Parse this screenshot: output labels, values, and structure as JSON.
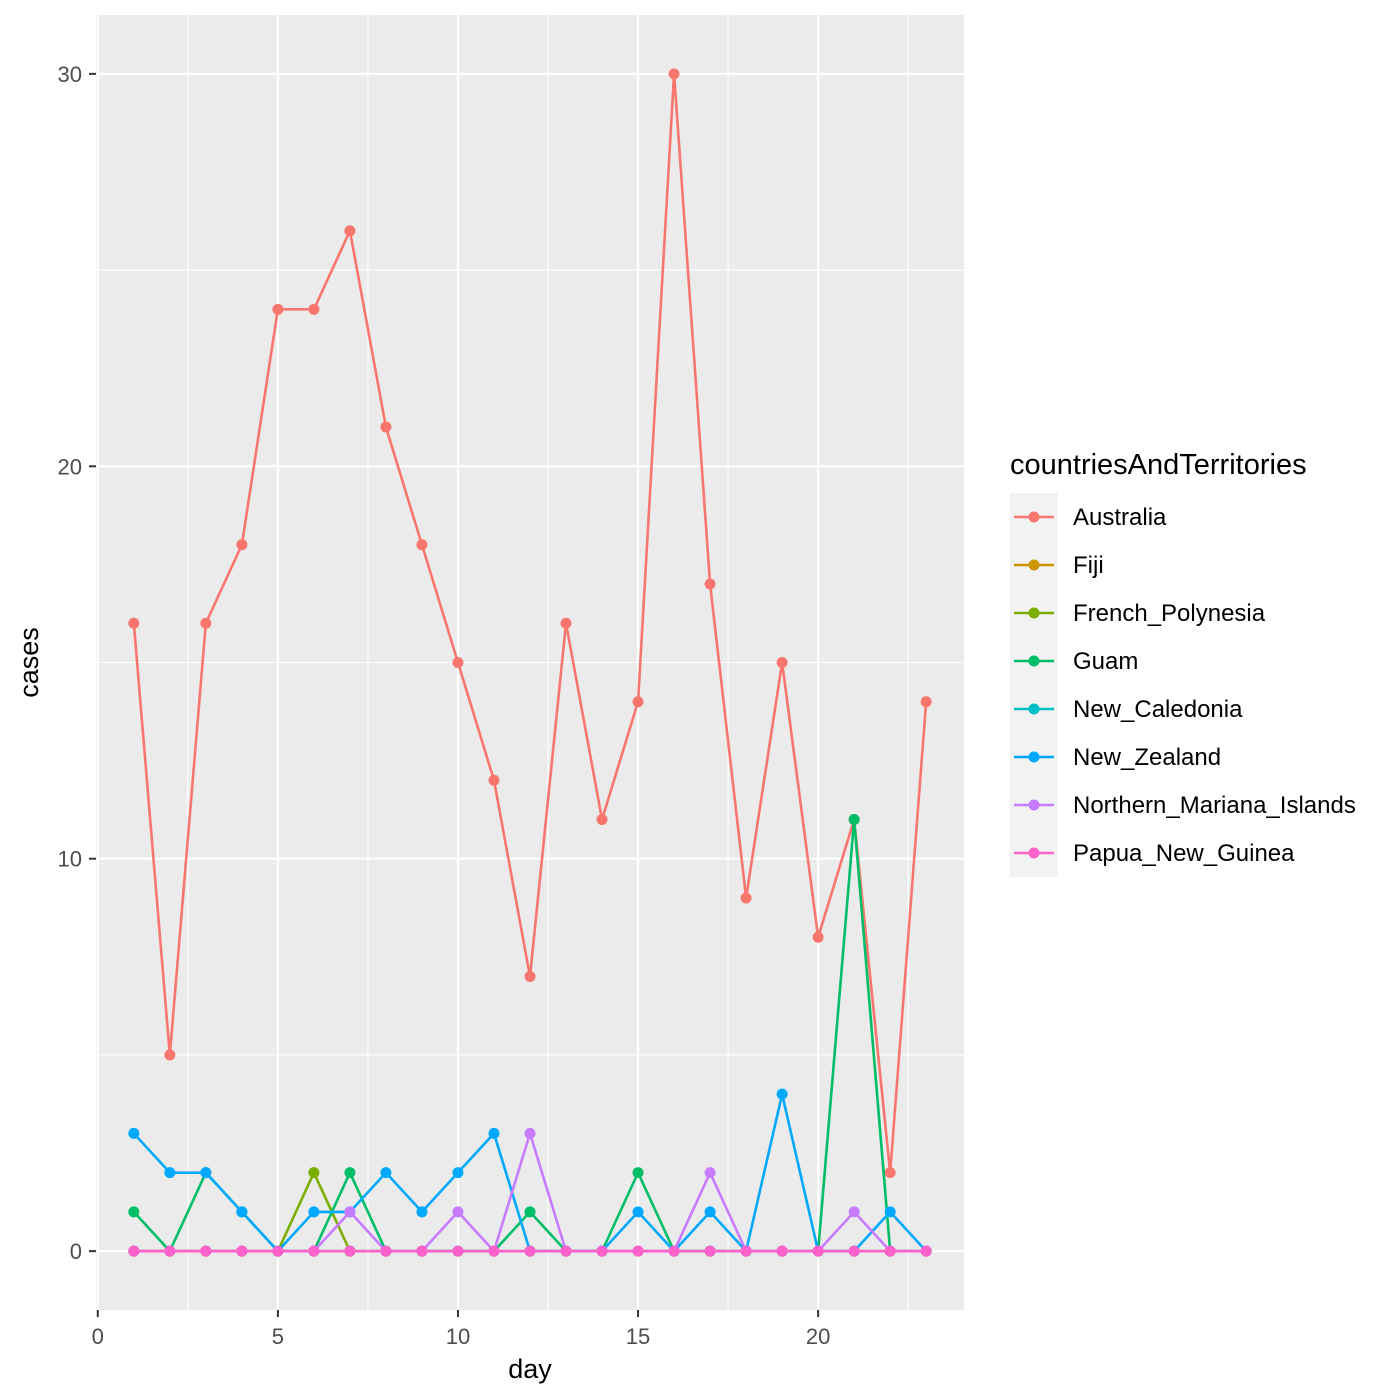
{
  "chart_data": {
    "type": "line",
    "title": "",
    "xlabel": "day",
    "ylabel": "cases",
    "xlim": [
      -0.05,
      24.05
    ],
    "ylim": [
      -1.5,
      31.5
    ],
    "x_ticks": [
      0,
      5,
      10,
      15,
      20
    ],
    "y_ticks": [
      0,
      10,
      20,
      30
    ],
    "grid": true,
    "legend": {
      "title": "countriesAndTerritories",
      "placement": "right"
    },
    "x": [
      1,
      2,
      3,
      4,
      5,
      6,
      7,
      8,
      9,
      10,
      11,
      12,
      13,
      14,
      15,
      16,
      17,
      18,
      19,
      20,
      21,
      22,
      23
    ],
    "series": [
      {
        "name": "Australia",
        "color": "#F8766D",
        "x": [
          1,
          2,
          3,
          4,
          5,
          6,
          7,
          8,
          9,
          10,
          11,
          12,
          13,
          14,
          15,
          16,
          17,
          18,
          19,
          20,
          21,
          22,
          23
        ],
        "values": [
          16,
          5,
          16,
          18,
          24,
          24,
          26,
          21,
          18,
          15,
          12,
          7,
          16,
          11,
          14,
          30,
          17,
          9,
          15,
          8,
          11,
          2,
          14
        ]
      },
      {
        "name": "Fiji",
        "color": "#CD9600",
        "x": [
          1,
          2,
          3,
          4,
          5,
          6,
          7,
          8,
          9,
          10,
          11,
          12,
          13,
          14,
          15,
          16,
          17,
          18,
          19,
          20,
          21,
          22,
          23
        ],
        "values": [
          0,
          0,
          0,
          0,
          0,
          0,
          0,
          0,
          0,
          0,
          0,
          0,
          0,
          0,
          0,
          0,
          0,
          0,
          0,
          0,
          0,
          0,
          0
        ]
      },
      {
        "name": "French_Polynesia",
        "color": "#7CAE00",
        "x": [
          1,
          2,
          3,
          4,
          5,
          6,
          7
        ],
        "values": [
          0,
          0,
          0,
          0,
          0,
          2,
          0
        ]
      },
      {
        "name": "Guam",
        "color": "#00BE67",
        "x": [
          1,
          2,
          3,
          4,
          5,
          6,
          7,
          8,
          9,
          10,
          11,
          12,
          13,
          14,
          15,
          16,
          17,
          18,
          19,
          20,
          21,
          22,
          23
        ],
        "values": [
          1,
          0,
          2,
          1,
          0,
          0,
          2,
          0,
          0,
          0,
          0,
          1,
          0,
          0,
          2,
          0,
          0,
          0,
          0,
          0,
          11,
          0,
          0
        ]
      },
      {
        "name": "New_Caledonia",
        "color": "#00BFC4",
        "x": [
          1,
          2,
          3,
          4,
          5,
          6,
          7,
          8,
          9,
          10,
          11,
          12,
          13,
          14,
          15,
          16,
          17,
          18,
          19,
          20,
          21,
          22,
          23
        ],
        "values": [
          0,
          0,
          0,
          0,
          0,
          0,
          0,
          0,
          0,
          0,
          0,
          0,
          0,
          0,
          0,
          0,
          0,
          0,
          0,
          0,
          0,
          0,
          0
        ]
      },
      {
        "name": "New_Zealand",
        "color": "#00A9FF",
        "x": [
          1,
          2,
          3,
          4,
          5,
          6,
          7,
          8,
          9,
          10,
          11,
          12,
          13,
          14,
          15,
          16,
          17,
          18,
          19,
          20,
          21,
          22,
          23
        ],
        "values": [
          3,
          2,
          2,
          1,
          0,
          1,
          1,
          2,
          1,
          2,
          3,
          0,
          0,
          0,
          1,
          0,
          1,
          0,
          4,
          0,
          0,
          1,
          0
        ]
      },
      {
        "name": "Northern_Mariana_Islands",
        "color": "#C77CFF",
        "x": [
          1,
          2,
          3,
          4,
          5,
          6,
          7,
          8,
          9,
          10,
          11,
          12,
          13,
          14,
          15,
          16,
          17,
          18,
          19,
          20,
          21,
          22,
          23
        ],
        "values": [
          0,
          0,
          0,
          0,
          0,
          0,
          1,
          0,
          0,
          1,
          0,
          3,
          0,
          0,
          0,
          0,
          2,
          0,
          0,
          0,
          1,
          0,
          0
        ]
      },
      {
        "name": "Papua_New_Guinea",
        "color": "#FF61CC",
        "x": [
          1,
          2,
          3,
          4,
          5,
          6,
          7,
          8,
          9,
          10,
          11,
          12,
          13,
          14,
          15,
          16,
          17,
          18,
          19,
          20,
          21,
          22,
          23
        ],
        "values": [
          0,
          0,
          0,
          0,
          0,
          0,
          0,
          0,
          0,
          0,
          0,
          0,
          0,
          0,
          0,
          0,
          0,
          0,
          0,
          0,
          0,
          0,
          0
        ]
      }
    ]
  }
}
